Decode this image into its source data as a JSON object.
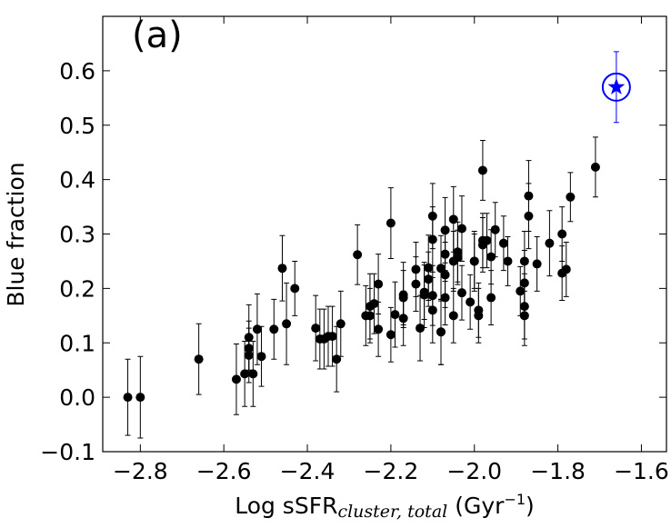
{
  "chart_data": {
    "type": "scatter",
    "panel_label": "(a)",
    "xlabel": {
      "main": "Log sSFR",
      "sub": "cluster, total",
      "unit": "(Gyr",
      "sup": "−1",
      "close": ")"
    },
    "ylabel": "Blue fraction",
    "xlim": [
      -2.89,
      -1.54
    ],
    "ylim": [
      -0.1,
      0.7
    ],
    "xticks": [
      {
        "value": -2.8,
        "label": "−2.8"
      },
      {
        "value": -2.6,
        "label": "−2.6"
      },
      {
        "value": -2.4,
        "label": "−2.4"
      },
      {
        "value": -2.2,
        "label": "−2.2"
      },
      {
        "value": -2.0,
        "label": "−2.0"
      },
      {
        "value": -1.8,
        "label": "−1.8"
      },
      {
        "value": -1.6,
        "label": "−1.6"
      }
    ],
    "yticks": [
      {
        "value": -0.1,
        "label": "−0.1"
      },
      {
        "value": 0,
        "label": "0.0"
      },
      0.1,
      0.2,
      0.3,
      0.4,
      0.5,
      0.6
    ],
    "grid": false,
    "series": [
      {
        "color": "#000000",
        "marker": "circle",
        "x": [
          -2.83,
          -2.8,
          -2.66,
          -2.57,
          -2.55,
          -2.54,
          -2.54,
          -2.54,
          -2.53,
          -2.52,
          -2.51,
          -2.48,
          -2.46,
          -2.45,
          -2.43,
          -2.38,
          -2.37,
          -2.36,
          -2.35,
          -2.34,
          -2.33,
          -2.32,
          -2.28,
          -2.26,
          -2.25,
          -2.25,
          -2.24,
          -2.23,
          -2.23,
          -2.2,
          -2.2,
          -2.19,
          -2.17,
          -2.17,
          -2.17,
          -2.14,
          -2.14,
          -2.13,
          -2.12,
          -2.12,
          -2.11,
          -2.11,
          -2.1,
          -2.1,
          -2.1,
          -2.1,
          -2.08,
          -2.08,
          -2.07,
          -2.08,
          -2.07,
          -2.07,
          -2.07,
          -2.05,
          -2.05,
          -2.05,
          -2.04,
          -2.04,
          -2.03,
          -2.03,
          -2.01,
          -2.0,
          -2.0,
          -1.99,
          -1.99,
          -1.98,
          -1.98,
          -1.98,
          -1.97,
          -1.96,
          -1.96,
          -1.95,
          -1.93,
          -1.92,
          -1.89,
          -1.88,
          -1.88,
          -1.88,
          -1.88,
          -1.87,
          -1.87,
          -1.85,
          -1.82,
          -1.79,
          -1.79,
          -1.78,
          -1.77,
          -1.71
        ],
        "values": [
          0.0,
          0.0,
          0.07,
          0.033,
          0.043,
          0.11,
          0.09,
          0.077,
          0.043,
          0.125,
          0.075,
          0.125,
          0.237,
          0.135,
          0.2,
          0.127,
          0.107,
          0.107,
          0.112,
          0.112,
          0.07,
          0.135,
          0.262,
          0.15,
          0.167,
          0.15,
          0.172,
          0.125,
          0.208,
          0.32,
          0.115,
          0.152,
          0.188,
          0.183,
          0.145,
          0.235,
          0.208,
          0.127,
          0.193,
          0.188,
          0.238,
          0.217,
          0.333,
          0.29,
          0.16,
          0.187,
          0.12,
          0.237,
          0.307,
          0.12,
          0.225,
          0.183,
          0.263,
          0.25,
          0.15,
          0.327,
          0.267,
          0.257,
          0.192,
          0.31,
          0.175,
          0.25,
          0.25,
          0.16,
          0.15,
          0.288,
          0.417,
          0.28,
          0.288,
          0.183,
          0.258,
          0.308,
          0.283,
          0.25,
          0.195,
          0.25,
          0.15,
          0.167,
          0.21,
          0.333,
          0.37,
          0.245,
          0.283,
          0.3,
          0.228,
          0.235,
          0.368,
          0.423
        ],
        "errors": [
          0.07,
          0.075,
          0.065,
          0.065,
          0.06,
          0.06,
          0.05,
          0.05,
          0.06,
          0.065,
          0.055,
          0.055,
          0.06,
          0.075,
          0.05,
          0.06,
          0.055,
          0.055,
          0.055,
          0.055,
          0.06,
          0.06,
          0.055,
          0.055,
          0.06,
          0.05,
          0.055,
          0.05,
          0.055,
          0.065,
          0.05,
          0.06,
          0.06,
          0.05,
          0.05,
          0.05,
          0.05,
          0.06,
          0.05,
          0.06,
          0.06,
          0.05,
          0.06,
          0.06,
          0.06,
          0.055,
          0.06,
          0.06,
          0.06,
          0.06,
          0.06,
          0.05,
          0.05,
          0.055,
          0.05,
          0.06,
          0.055,
          0.05,
          0.05,
          0.06,
          0.05,
          0.055,
          0.05,
          0.05,
          0.05,
          0.05,
          0.055,
          0.05,
          0.05,
          0.05,
          0.05,
          0.05,
          0.05,
          0.045,
          0.045,
          0.055,
          0.055,
          0.06,
          0.06,
          0.06,
          0.065,
          0.05,
          0.06,
          0.05,
          0.05,
          0.05,
          0.045,
          0.055
        ]
      },
      {
        "color": "#0000ff",
        "marker": "star",
        "x": [
          -1.66
        ],
        "values": [
          0.57
        ],
        "errors": [
          0.065
        ]
      }
    ]
  }
}
